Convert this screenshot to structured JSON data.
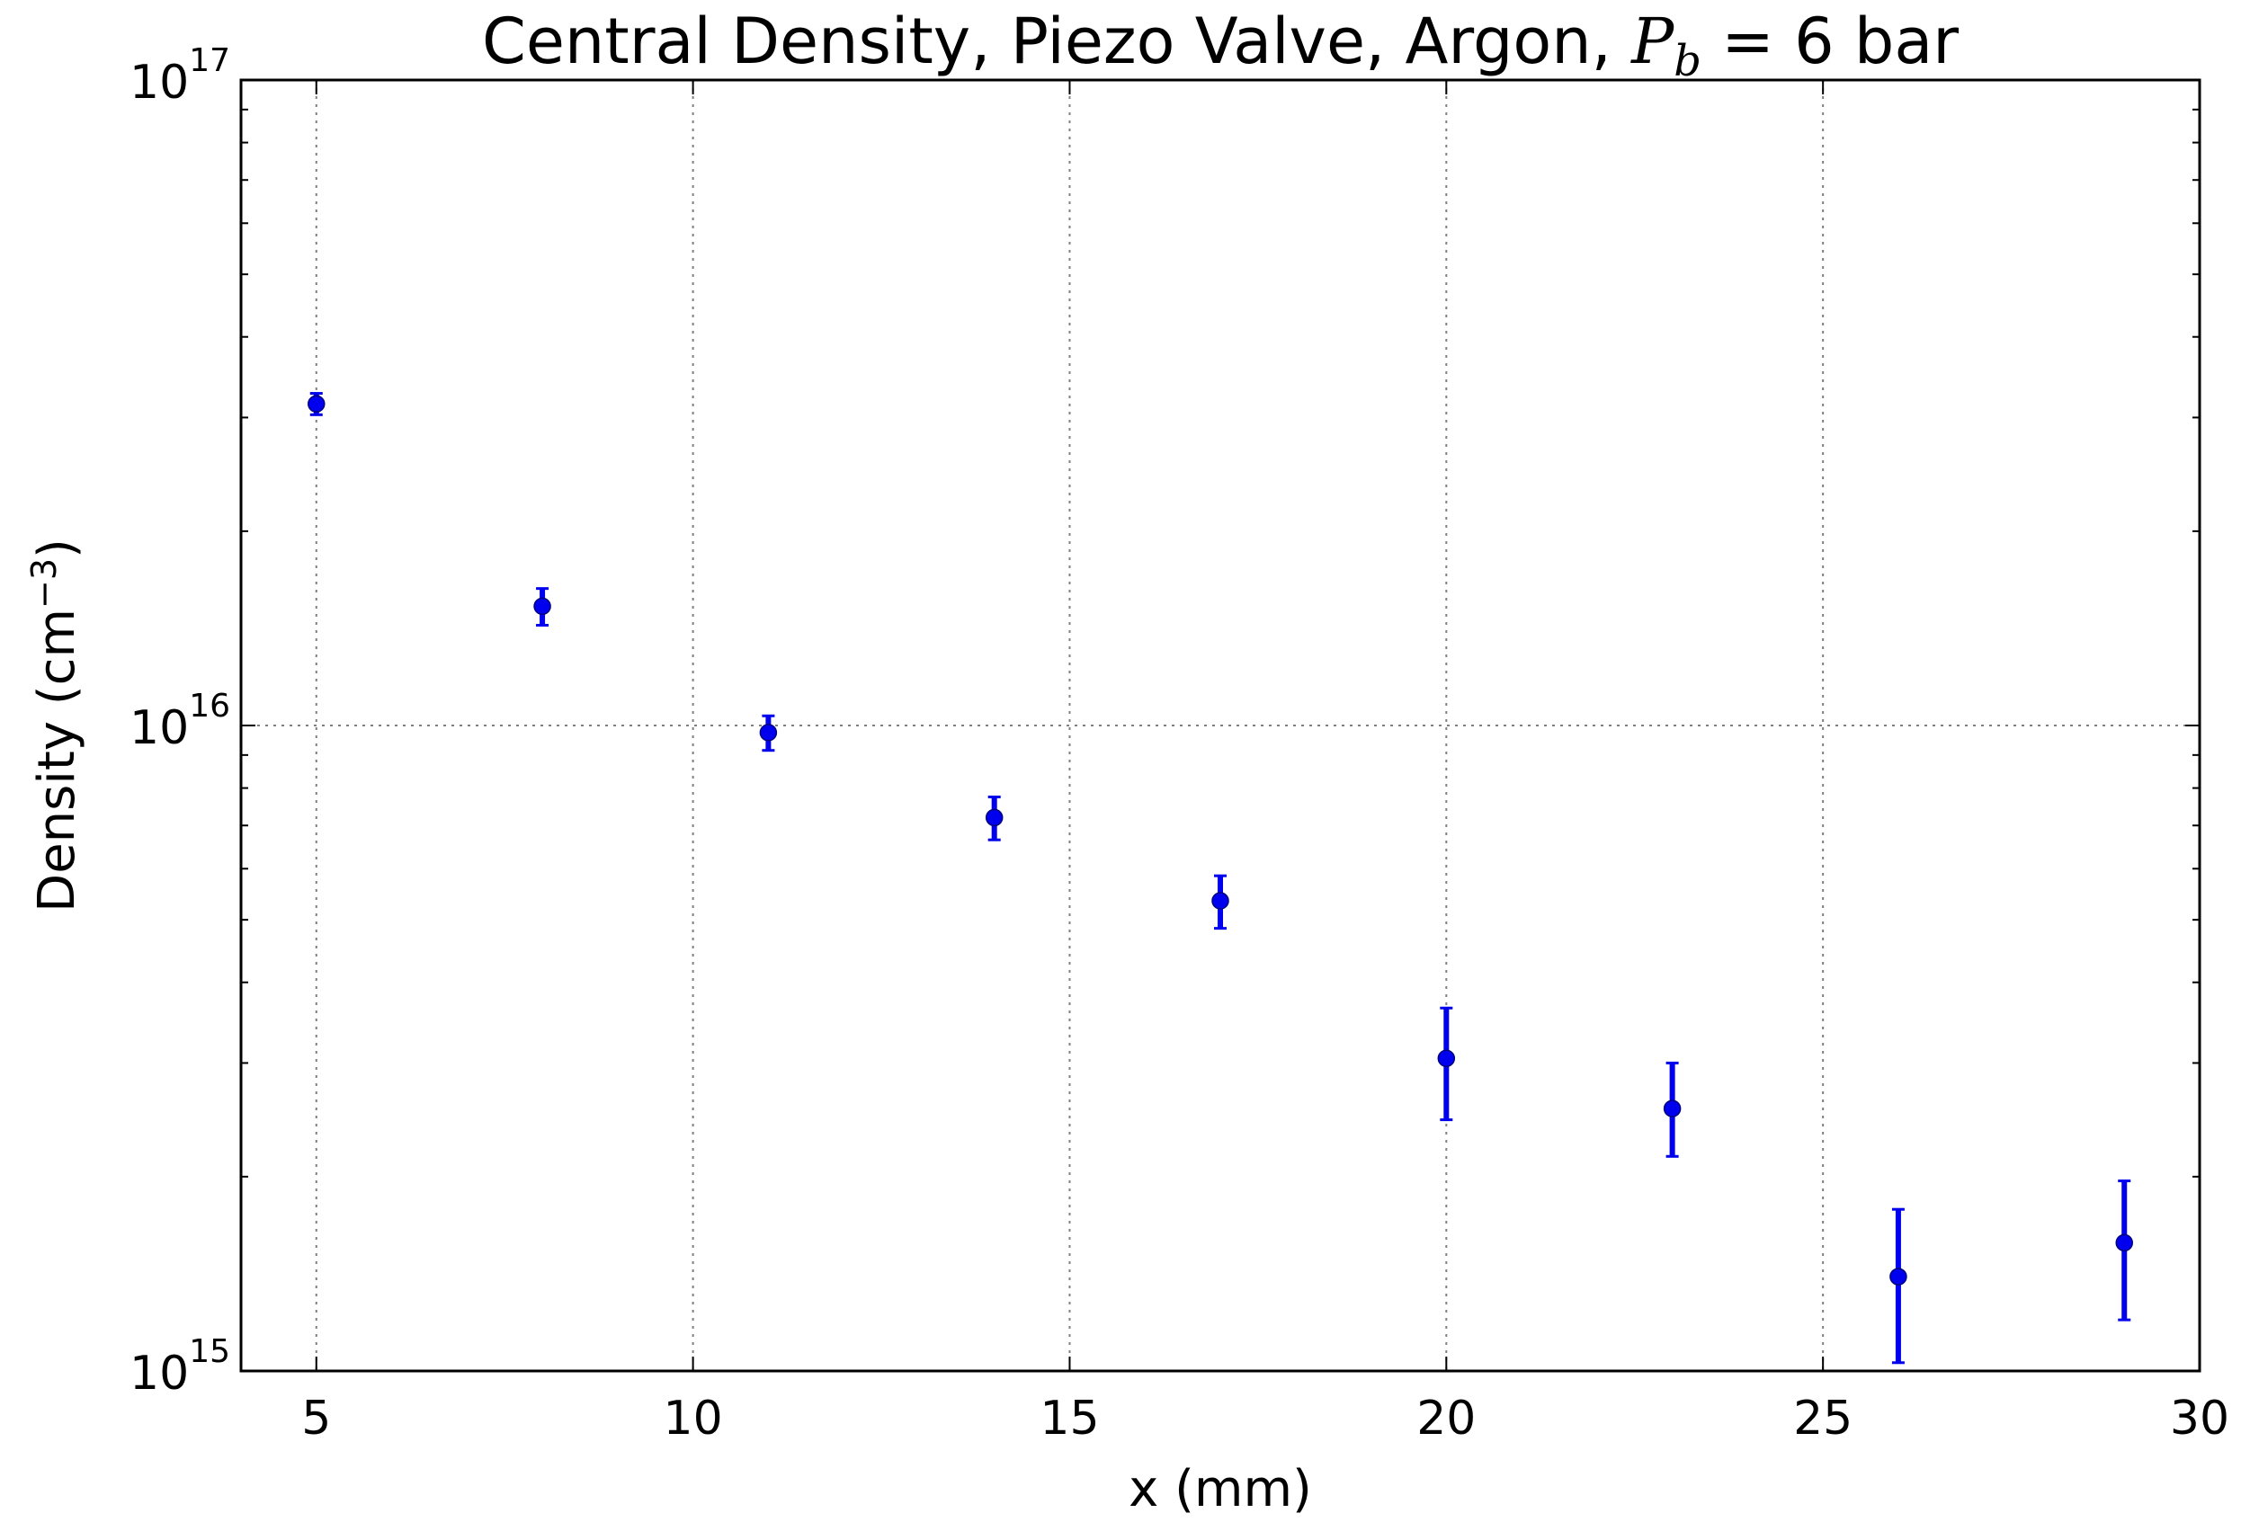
{
  "chart_data": {
    "type": "scatter",
    "title": {
      "prefix": "Central Density, Piezo Valve, Argon, ",
      "math_var": "P",
      "math_sub": "b",
      "suffix": " = 6 bar"
    },
    "xlabel": "x (mm)",
    "ylabel": {
      "prefix": "Density (cm",
      "sup": "−3",
      "suffix": ")"
    },
    "xlim": [
      4,
      30
    ],
    "ylim": [
      1000000000000000.0,
      1e+17
    ],
    "yscale": "log",
    "grid": true,
    "x_ticks": [
      {
        "value": 5,
        "label": "5"
      },
      {
        "value": 10,
        "label": "10"
      },
      {
        "value": 15,
        "label": "15"
      },
      {
        "value": 20,
        "label": "20"
      },
      {
        "value": 25,
        "label": "25"
      },
      {
        "value": 30,
        "label": "30"
      }
    ],
    "y_ticks": [
      {
        "value": 1000000000000000.0,
        "base": "10",
        "exp": "15"
      },
      {
        "value": 1e+16,
        "base": "10",
        "exp": "16"
      },
      {
        "value": 1e+17,
        "base": "10",
        "exp": "17"
      }
    ],
    "series": [
      {
        "color": "#0000ee",
        "points": [
          {
            "x": 5,
            "y": 3.15e+16,
            "ylo": 3.03e+16,
            "yhi": 3.27e+16
          },
          {
            "x": 8,
            "y": 1.53e+16,
            "ylo": 1.43e+16,
            "yhi": 1.63e+16
          },
          {
            "x": 11,
            "y": 9750000000000000.0,
            "ylo": 9150000000000000.0,
            "yhi": 1.035e+16
          },
          {
            "x": 14,
            "y": 7200000000000000.0,
            "ylo": 6650000000000000.0,
            "yhi": 7750000000000000.0
          },
          {
            "x": 17,
            "y": 5350000000000000.0,
            "ylo": 4850000000000000.0,
            "yhi": 5850000000000000.0
          },
          {
            "x": 20,
            "y": 3050000000000000.0,
            "ylo": 2450000000000000.0,
            "yhi": 3650000000000000.0
          },
          {
            "x": 23,
            "y": 2550000000000000.0,
            "ylo": 2150000000000000.0,
            "yhi": 3000000000000000.0
          },
          {
            "x": 26,
            "y": 1400000000000000.0,
            "ylo": 1030000000000000.0,
            "yhi": 1780000000000000.0
          },
          {
            "x": 29,
            "y": 1580000000000000.0,
            "ylo": 1200000000000000.0,
            "yhi": 1970000000000000.0
          }
        ]
      }
    ]
  }
}
